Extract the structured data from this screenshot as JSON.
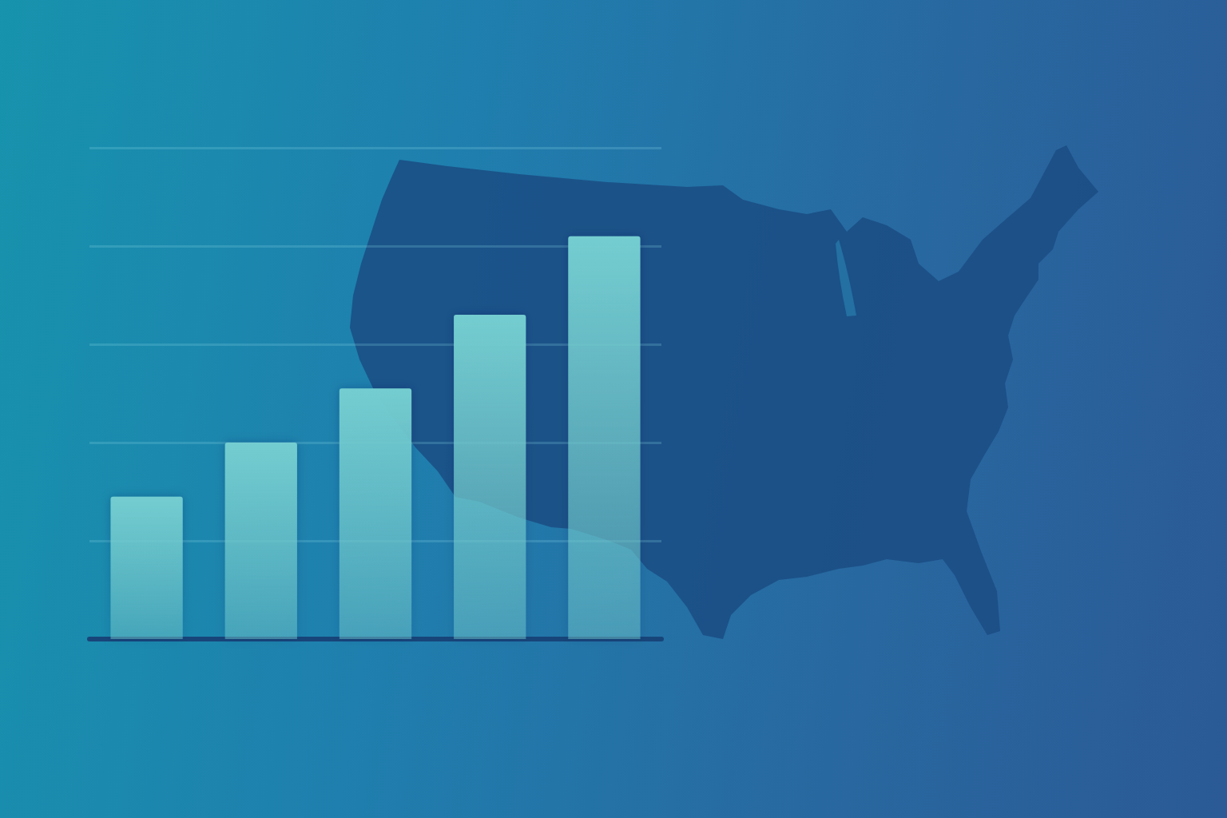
{
  "chart_data": {
    "type": "bar",
    "categories": [
      null,
      null,
      null,
      null,
      null
    ],
    "values": [
      29,
      40,
      51,
      66,
      82
    ],
    "color": "#74cdd0",
    "ylim": [
      0,
      100
    ],
    "yticks": [
      0,
      20,
      40,
      60,
      80,
      100
    ],
    "grid": true,
    "tick_labels": false
  }
}
